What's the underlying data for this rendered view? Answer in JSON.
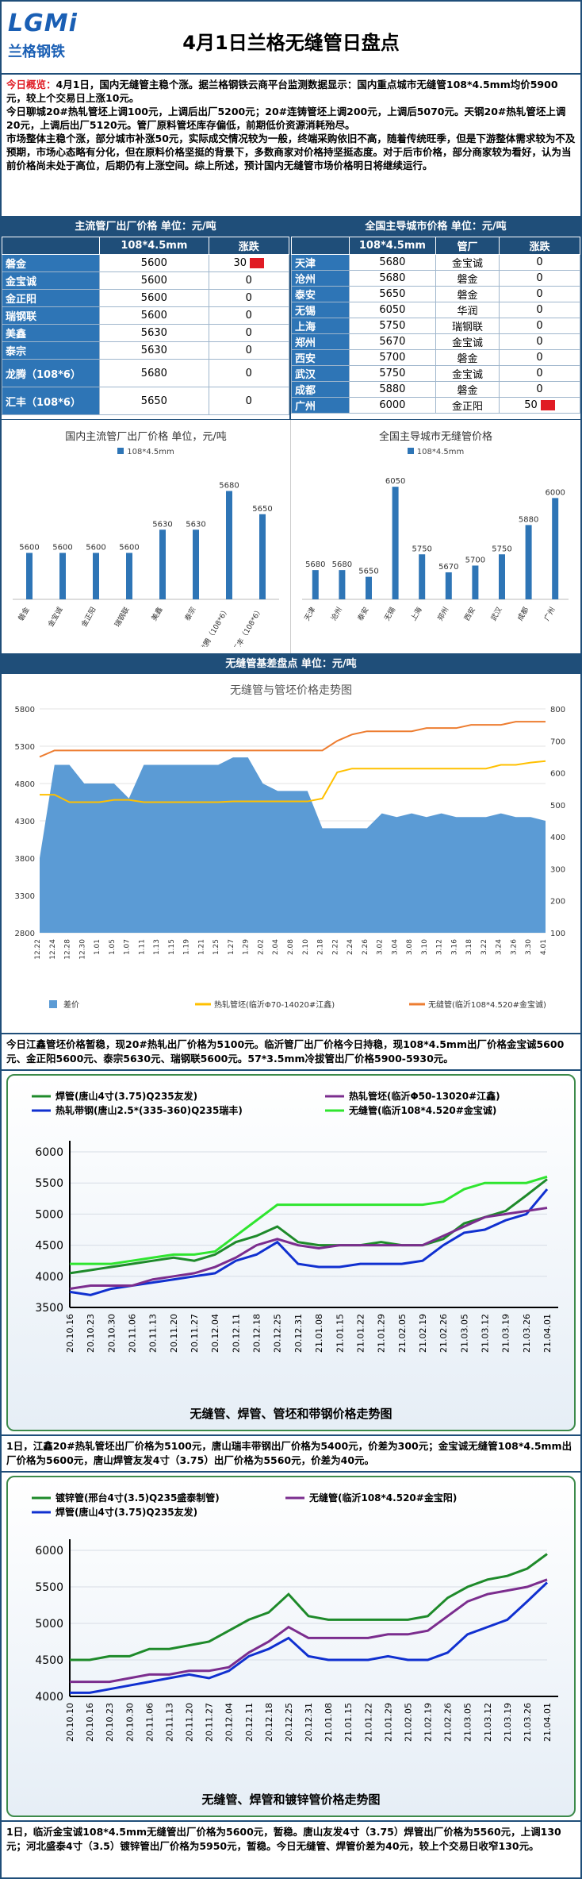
{
  "header": {
    "logo_mark": "LGMi",
    "logo_brand": "兰格钢铁",
    "title": "4月1日兰格无缝管日盘点"
  },
  "overview": {
    "label": "今日概览：",
    "p1": "4月1日，国内无缝管主稳个涨。据兰格钢铁云商平台监测数据显示：国内重点城市无缝管108*4.5mm均价5900元，较上个交易日上涨10元。",
    "p2": "今日聊城20#热轧管坯上调100元，上调后出厂5200元；20#连铸管坯上调200元，上调后5070元。天钢20#热轧管坯上调20元，上调后出厂5120元。管厂原料管坯库存偏低，前期低价资源消耗殆尽。",
    "p3": "市场整体主稳个涨，部分城市补涨50元，实际成交情况较为一般，终端采购依旧不高，随着传统旺季，但是下游整体需求较为不及预期，市场心态略有分化，但在原料价格坚挺的背景下，多数商家对价格持坚挺态度。对于后市价格，部分商家较为看好，认为当前价格尚未处于高位，后期仍有上涨空间。综上所述，预计国内无缝管市场价格明日将继续运行。"
  },
  "mill_table": {
    "title": "主流管厂出厂价格  单位：元/吨",
    "col_spec": "108*4.5mm",
    "col_change": "涨跌",
    "rows": [
      {
        "name": "磐金",
        "price": "5600",
        "change": "30"
      },
      {
        "name": "金宝诚",
        "price": "5600",
        "change": "0"
      },
      {
        "name": "金正阳",
        "price": "5600",
        "change": "0"
      },
      {
        "name": "瑞钢联",
        "price": "5600",
        "change": "0"
      },
      {
        "name": "美鑫",
        "price": "5630",
        "change": "0"
      },
      {
        "name": "泰宗",
        "price": "5630",
        "change": "0"
      },
      {
        "name": "龙腾（108*6）",
        "price": "5680",
        "change": "0"
      },
      {
        "name": "汇丰（108*6）",
        "price": "5650",
        "change": "0"
      }
    ]
  },
  "city_table": {
    "title": "全国主导城市价格  单位：元/吨",
    "col_spec": "108*4.5mm",
    "col_mill": "管厂",
    "col_change": "涨跌",
    "rows": [
      {
        "city": "天津",
        "price": "5680",
        "mill": "金宝诚",
        "change": "0"
      },
      {
        "city": "沧州",
        "price": "5680",
        "mill": "磐金",
        "change": "0"
      },
      {
        "city": "泰安",
        "price": "5650",
        "mill": "磐金",
        "change": "0"
      },
      {
        "city": "无锡",
        "price": "6050",
        "mill": "华润",
        "change": "0"
      },
      {
        "city": "上海",
        "price": "5750",
        "mill": "瑞钢联",
        "change": "0"
      },
      {
        "city": "郑州",
        "price": "5670",
        "mill": "金宝诚",
        "change": "0"
      },
      {
        "city": "西安",
        "price": "5700",
        "mill": "磐金",
        "change": "0"
      },
      {
        "city": "武汉",
        "price": "5750",
        "mill": "金宝诚",
        "change": "0"
      },
      {
        "city": "成都",
        "price": "5880",
        "mill": "磐金",
        "change": "0"
      },
      {
        "city": "广州",
        "price": "6000",
        "mill": "金正阳",
        "change": "50"
      }
    ]
  },
  "chart_data": [
    {
      "type": "bar",
      "title": "国内主流管厂出厂价格  单位，元/吨",
      "legend": "108*4.5mm",
      "categories": [
        "磐金",
        "金宝诚",
        "金正阳",
        "瑞钢联",
        "美鑫",
        "泰宗",
        "龙腾（108*6）",
        "汇丰（108*6）"
      ],
      "values": [
        5600,
        5600,
        5600,
        5600,
        5630,
        5630,
        5680,
        5650
      ],
      "ylim": [
        5540,
        5700
      ]
    },
    {
      "type": "bar",
      "title": "全国主导城市无缝管价格",
      "legend": "108*4.5mm",
      "categories": [
        "天津",
        "沧州",
        "泰安",
        "无锡",
        "上海",
        "郑州",
        "西安",
        "武汉",
        "成都",
        "广州"
      ],
      "values": [
        5680,
        5680,
        5650,
        6050,
        5750,
        5670,
        5700,
        5750,
        5880,
        6000
      ],
      "ylim": [
        5550,
        6100
      ]
    },
    {
      "type": "area",
      "title": "无缝管与管坯价格走势图",
      "x": [
        "12.22",
        "12.24",
        "12.28",
        "12.30",
        "1.01",
        "1.05",
        "1.07",
        "1.11",
        "1.13",
        "1.15",
        "1.19",
        "1.21",
        "1.25",
        "1.27",
        "1.29",
        "2.02",
        "2.04",
        "2.08",
        "2.10",
        "2.18",
        "2.22",
        "2.24",
        "2.26",
        "3.02",
        "3.04",
        "3.08",
        "3.10",
        "3.12",
        "3.16",
        "3.18",
        "3.22",
        "3.24",
        "3.26",
        "3.30",
        "4.01"
      ],
      "series": [
        {
          "name": "差价",
          "axis": "left",
          "values": [
            3800,
            5050,
            5050,
            4800,
            4800,
            4800,
            4600,
            5050,
            5050,
            5050,
            5050,
            5050,
            5050,
            5150,
            5150,
            4800,
            4700,
            4700,
            4700,
            4200,
            4200,
            4200,
            4200,
            4400,
            4350,
            4400,
            4350,
            4400,
            4350,
            4350,
            4350,
            4400,
            4350,
            4350,
            4300
          ]
        },
        {
          "name": "热轧管坯(临沂Φ70-14020#江鑫)",
          "axis": "left",
          "values": [
            4650,
            4650,
            4550,
            4550,
            4550,
            4580,
            4580,
            4550,
            4550,
            4550,
            4550,
            4550,
            4550,
            4560,
            4560,
            4560,
            4560,
            4560,
            4560,
            4600,
            4950,
            5000,
            5000,
            5000,
            5000,
            5000,
            5000,
            5000,
            5000,
            5000,
            5000,
            5050,
            5050,
            5080,
            5100
          ]
        },
        {
          "name": "无缝管(临沂108*4.520#金宝诚)",
          "axis": "right",
          "values": [
            650,
            670,
            670,
            670,
            670,
            670,
            670,
            670,
            670,
            670,
            670,
            670,
            670,
            670,
            670,
            670,
            670,
            670,
            670,
            670,
            700,
            720,
            730,
            730,
            730,
            730,
            740,
            740,
            740,
            750,
            750,
            750,
            760,
            760,
            760
          ]
        }
      ],
      "ylim_left": [
        2800,
        5800
      ],
      "ylim_right": [
        100,
        800
      ]
    },
    {
      "type": "line",
      "title": "无缝管、焊管、管坯和带钢价格走势图",
      "x": [
        "20.10.16",
        "20.10.23",
        "20.10.30",
        "20.11.06",
        "20.11.13",
        "20.11.20",
        "20.11.27",
        "20.12.04",
        "20.12.11",
        "20.12.18",
        "20.12.25",
        "20.12.31",
        "21.01.08",
        "21.01.15",
        "21.01.22",
        "21.01.29",
        "21.02.05",
        "21.02.19",
        "21.02.26",
        "21.03.05",
        "21.03.12",
        "21.03.19",
        "21.03.26",
        "21.04.01"
      ],
      "series": [
        {
          "name": "焊管(唐山4寸(3.75)Q235友发)",
          "values": [
            4050,
            4100,
            4150,
            4200,
            4250,
            4300,
            4250,
            4350,
            4550,
            4650,
            4800,
            4550,
            4500,
            4500,
            4500,
            4550,
            4500,
            4500,
            4600,
            4850,
            4950,
            5050,
            5300,
            5560
          ]
        },
        {
          "name": "热轧带钢(唐山2.5*(335-360)Q235瑞丰)",
          "values": [
            3750,
            3700,
            3800,
            3850,
            3900,
            3950,
            4000,
            4050,
            4250,
            4350,
            4550,
            4200,
            4150,
            4150,
            4200,
            4200,
            4200,
            4250,
            4500,
            4700,
            4750,
            4900,
            5000,
            5400
          ]
        },
        {
          "name": "热轧管坯(临沂Φ50-13020#江鑫)",
          "values": [
            3800,
            3850,
            3850,
            3850,
            3950,
            4000,
            4050,
            4150,
            4300,
            4500,
            4600,
            4500,
            4450,
            4500,
            4500,
            4500,
            4500,
            4500,
            4650,
            4800,
            4950,
            5000,
            5050,
            5100
          ]
        },
        {
          "name": "无缝管(临沂108*4.520#金宝诚)",
          "values": [
            4200,
            4200,
            4200,
            4250,
            4300,
            4350,
            4350,
            4400,
            4650,
            4900,
            5150,
            5150,
            5150,
            5150,
            5150,
            5150,
            5150,
            5150,
            5200,
            5400,
            5500,
            5500,
            5500,
            5600
          ]
        }
      ],
      "ylim": [
        3500,
        6000
      ]
    },
    {
      "type": "line",
      "title": "无缝管、焊管和镀锌管价格走势图",
      "x": [
        "20.10.10",
        "20.10.16",
        "20.10.23",
        "20.10.30",
        "20.11.06",
        "20.11.13",
        "20.11.20",
        "20.11.27",
        "20.12.04",
        "20.12.11",
        "20.12.18",
        "20.12.25",
        "20.12.31",
        "21.01.08",
        "21.01.15",
        "21.01.22",
        "21.01.29",
        "21.02.05",
        "21.02.19",
        "21.02.26",
        "21.03.05",
        "21.03.12",
        "21.03.19",
        "21.03.26",
        "21.04.01"
      ],
      "series": [
        {
          "name": "镀锌管(邢台4寸(3.5)Q235盛泰制管)",
          "values": [
            4500,
            4500,
            4550,
            4550,
            4650,
            4650,
            4700,
            4750,
            4900,
            5050,
            5150,
            5400,
            5100,
            5050,
            5050,
            5050,
            5050,
            5050,
            5100,
            5350,
            5500,
            5600,
            5650,
            5750,
            5950
          ]
        },
        {
          "name": "无缝管(临沂108*4.520#金宝阳)",
          "values": [
            4200,
            4200,
            4200,
            4250,
            4300,
            4300,
            4350,
            4350,
            4400,
            4600,
            4750,
            4950,
            4800,
            4800,
            4800,
            4800,
            4850,
            4850,
            4900,
            5100,
            5300,
            5400,
            5450,
            5500,
            5600
          ]
        },
        {
          "name": "焊管(唐山4寸(3.75)Q235友发)",
          "values": [
            4050,
            4050,
            4100,
            4150,
            4200,
            4250,
            4300,
            4250,
            4350,
            4550,
            4650,
            4800,
            4550,
            4500,
            4500,
            4500,
            4550,
            4500,
            4500,
            4600,
            4850,
            4950,
            5050,
            5300,
            5560
          ]
        }
      ],
      "ylim": [
        4000,
        6000
      ]
    }
  ],
  "section_spread": "无缝管基差盘点    单位：元/吨",
  "para1": "今日江鑫管坯价格暂稳，现20#热轧出厂价格为5100元。临沂管厂出厂价格今日持稳，现108*4.5mm出厂价格金宝诚5600元、金正阳5600元、泰宗5630元、瑞钢联5600元。57*3.5mm冷拔管出厂价格5900-5930元。",
  "para2": "1日，江鑫20#热轧管坯出厂价格为5100元，唐山瑞丰带钢出厂价格为5400元，价差为300元；金宝诚无缝管108*4.5mm出厂价格为5600元，唐山焊管友发4寸（3.75）出厂价格为5560元，价差为40元。",
  "para3": "1日，临沂金宝诚108*4.5mm无缝管出厂价格为5600元，暂稳。唐山友发4寸（3.75）焊管出厂价格为5560元，上调130元；河北盛泰4寸（3.5）镀锌管出厂价格为5950元，暂稳。今日无缝管、焊管价差为40元，较上个交易日收窄130元。",
  "colors": {
    "navy": "#1f4e79",
    "bar": "#2e75b6",
    "red": "#e01b24",
    "orange": "#ed7d31",
    "gold": "#ffc000",
    "green": "#1e8a2a",
    "purple": "#7b2d8e",
    "blue": "#1030d0",
    "lime": "#2fe52f"
  }
}
